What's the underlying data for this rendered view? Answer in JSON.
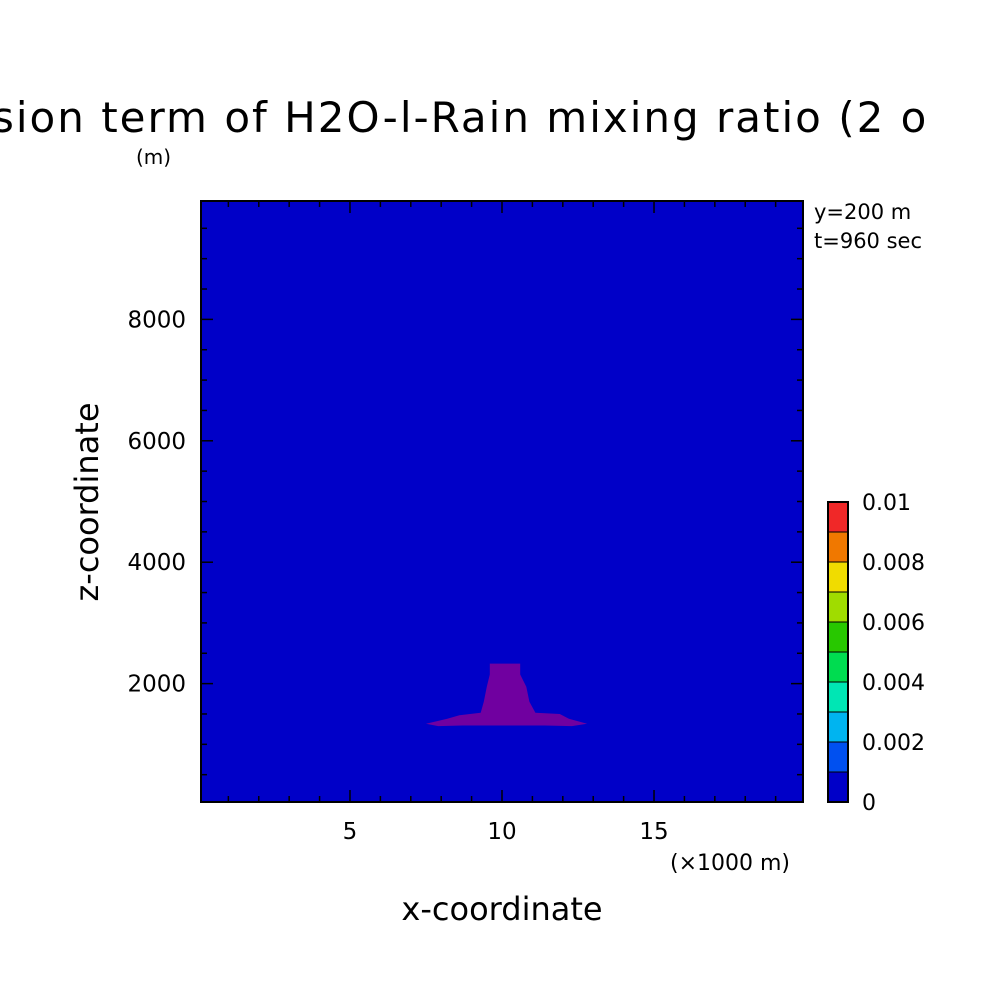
{
  "chart_data": {
    "type": "heatmap",
    "title": "sion term of H2O-l-Rain mixing ratio (2 o",
    "title_unit": "(m)",
    "xlabel": "x-coordinate",
    "ylabel": "z-coordinate",
    "x_unit": "(×1000 m)",
    "x_ticks": [
      5,
      10,
      15
    ],
    "x_tick_labels": [
      "5",
      "10",
      "15"
    ],
    "xlim": [
      0.1,
      19.9
    ],
    "y_ticks": [
      2000,
      4000,
      6000,
      8000
    ],
    "y_tick_labels": [
      "2000",
      "4000",
      "6000",
      "8000"
    ],
    "ylim": [
      50,
      9950
    ],
    "annotations": [
      "y=200 m",
      "t=960 sec"
    ],
    "background_color": "#0000c8",
    "feature": {
      "color": "#7000a0",
      "outline": [
        [
          9.6,
          2330
        ],
        [
          10.6,
          2330
        ],
        [
          10.6,
          2150
        ],
        [
          10.8,
          1950
        ],
        [
          10.9,
          1700
        ],
        [
          11.1,
          1520
        ],
        [
          11.9,
          1500
        ],
        [
          12.2,
          1420
        ],
        [
          12.8,
          1340
        ],
        [
          12.3,
          1300
        ],
        [
          11.4,
          1310
        ],
        [
          8.7,
          1310
        ],
        [
          7.9,
          1300
        ],
        [
          7.5,
          1340
        ],
        [
          8.2,
          1420
        ],
        [
          8.6,
          1480
        ],
        [
          9.3,
          1520
        ],
        [
          9.4,
          1700
        ],
        [
          9.5,
          1950
        ],
        [
          9.6,
          2150
        ]
      ]
    },
    "colorbar": {
      "levels": [
        0,
        0.001,
        0.002,
        0.003,
        0.004,
        0.005,
        0.006,
        0.007,
        0.008,
        0.009,
        0.01
      ],
      "tick_labels": [
        "0",
        "0.002",
        "0.004",
        "0.006",
        "0.008",
        "0.01"
      ],
      "colors": [
        "#0000c8",
        "#0050f0",
        "#00b4f0",
        "#00e6b4",
        "#00dc50",
        "#28c800",
        "#a0dc00",
        "#f0dc00",
        "#f07800",
        "#f02828"
      ]
    }
  }
}
